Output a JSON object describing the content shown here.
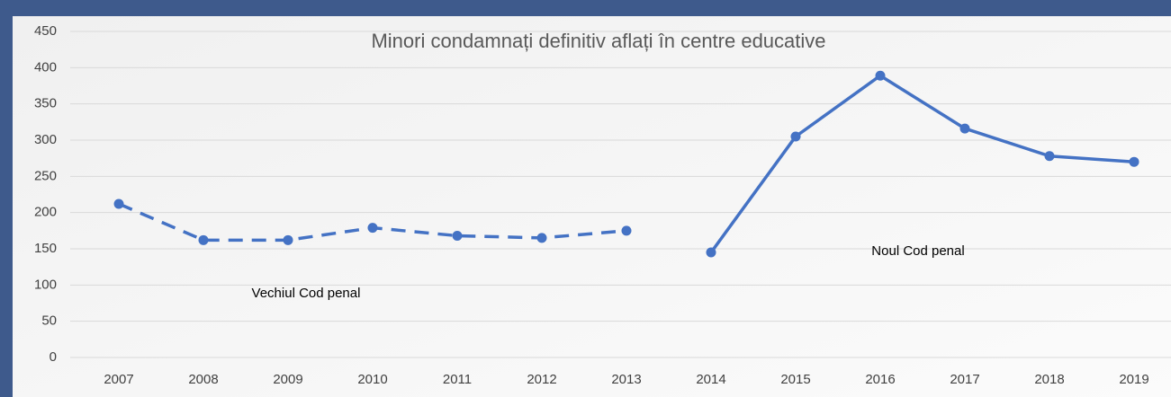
{
  "chart_data": {
    "type": "line",
    "title": "Minori condamnați definitiv aflați în centre educative",
    "categories": [
      "2007",
      "2008",
      "2009",
      "2010",
      "2011",
      "2012",
      "2013",
      "2014",
      "2015",
      "2016",
      "2017",
      "2018",
      "2019"
    ],
    "series": [
      {
        "name": "Vechiul Cod penal",
        "color": "#4472c4",
        "dashed": true,
        "values": [
          212,
          162,
          162,
          179,
          168,
          165,
          175,
          null,
          null,
          null,
          null,
          null,
          null
        ]
      },
      {
        "name": "Noul Cod penal",
        "color": "#4472c4",
        "dashed": false,
        "values": [
          null,
          null,
          null,
          null,
          null,
          null,
          null,
          145,
          305,
          389,
          316,
          278,
          270
        ]
      }
    ],
    "ylim": [
      0,
      450
    ],
    "yticks": [
      0,
      50,
      100,
      150,
      200,
      250,
      300,
      350,
      400,
      450
    ],
    "grid": true
  }
}
